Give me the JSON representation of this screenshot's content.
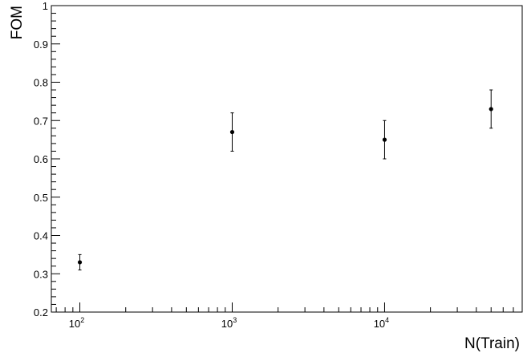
{
  "chart_data": {
    "type": "scatter",
    "title": "",
    "xlabel": "N(Train)",
    "ylabel": "FOM",
    "xscale": "log",
    "xlim": [
      65,
      80000
    ],
    "ylim": [
      0.2,
      1.0
    ],
    "grid": false,
    "y_ticks": [
      {
        "value": 0.2,
        "label": "0.2"
      },
      {
        "value": 0.3,
        "label": "0.3"
      },
      {
        "value": 0.4,
        "label": "0.4"
      },
      {
        "value": 0.5,
        "label": "0.5"
      },
      {
        "value": 0.6,
        "label": "0.6"
      },
      {
        "value": 0.7,
        "label": "0.7"
      },
      {
        "value": 0.8,
        "label": "0.8"
      },
      {
        "value": 0.9,
        "label": "0.9"
      },
      {
        "value": 1.0,
        "label": "1"
      }
    ],
    "x_ticks": [
      {
        "value": 100,
        "base": "10",
        "exponent": "2"
      },
      {
        "value": 1000,
        "base": "10",
        "exponent": "3"
      },
      {
        "value": 10000,
        "base": "10",
        "exponent": "4"
      }
    ],
    "points": [
      {
        "x": 100,
        "y": 0.33,
        "err": 0.02
      },
      {
        "x": 1000,
        "y": 0.67,
        "err": 0.05
      },
      {
        "x": 10000,
        "y": 0.65,
        "err": 0.05
      },
      {
        "x": 50000,
        "y": 0.73,
        "err": 0.05
      }
    ]
  }
}
